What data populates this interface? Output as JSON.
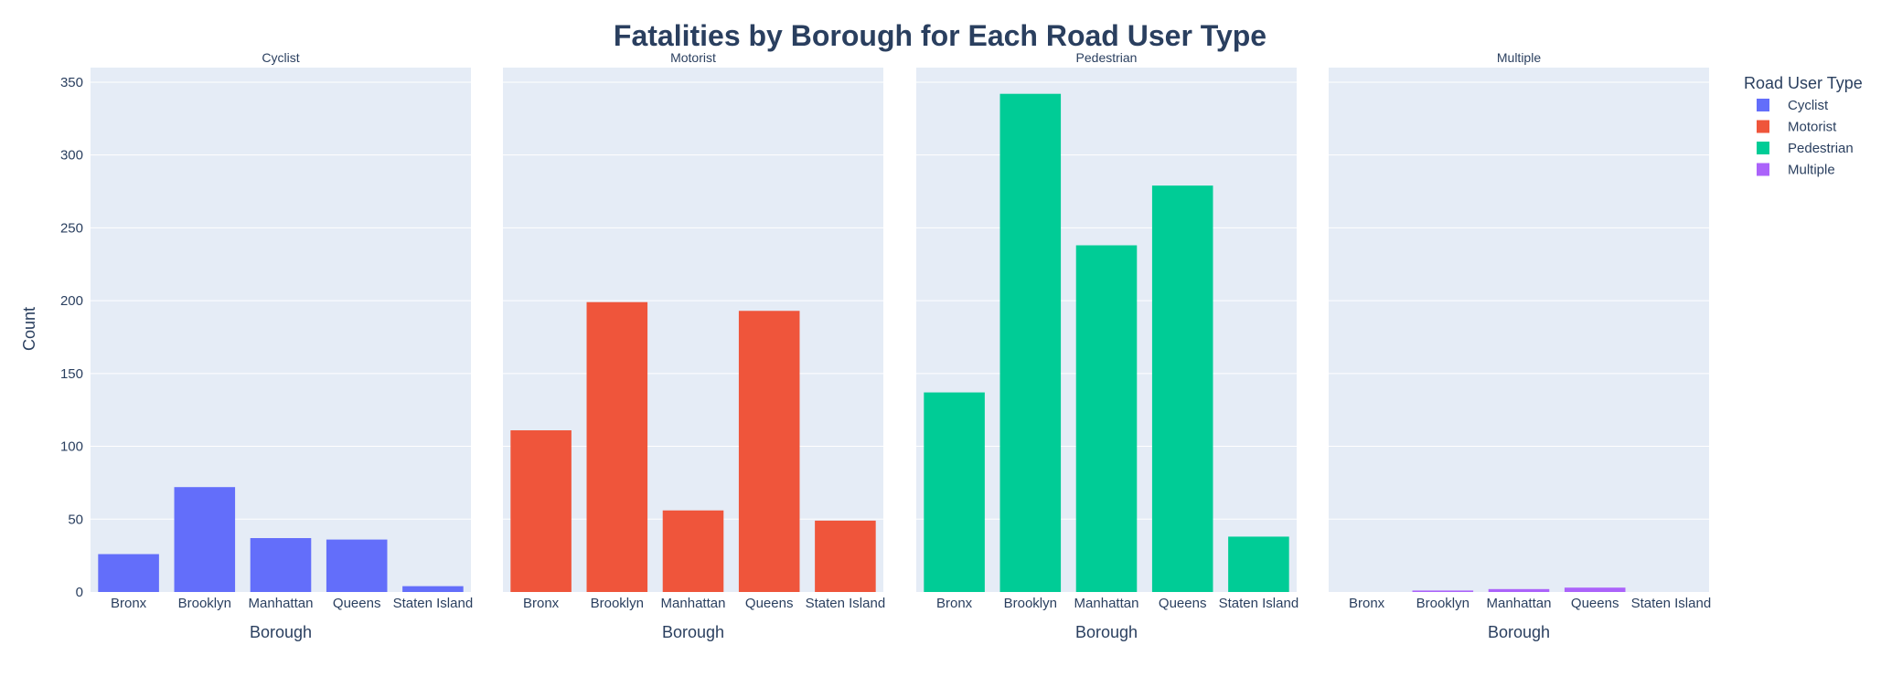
{
  "chart_data": {
    "type": "bar",
    "title": "Fatalities by Borough for Each Road User Type",
    "ylabel": "Count",
    "xlabel": "Borough",
    "ylim": [
      0,
      360
    ],
    "yticks": [
      0,
      50,
      100,
      150,
      200,
      250,
      300,
      350
    ],
    "categories": [
      "Bronx",
      "Brooklyn",
      "Manhattan",
      "Queens",
      "Staten Island"
    ],
    "legend": {
      "title": "Road User Type",
      "position": "top-right"
    },
    "grid": true,
    "series": [
      {
        "name": "Cyclist",
        "color": "#636EFA",
        "values": [
          26,
          72,
          37,
          36,
          4
        ]
      },
      {
        "name": "Motorist",
        "color": "#EF553B",
        "values": [
          111,
          199,
          56,
          193,
          49
        ]
      },
      {
        "name": "Pedestrian",
        "color": "#00CC96",
        "values": [
          137,
          342,
          238,
          279,
          38
        ]
      },
      {
        "name": "Multiple",
        "color": "#AB63FA",
        "values": [
          0,
          1,
          2,
          3,
          0
        ]
      }
    ]
  }
}
